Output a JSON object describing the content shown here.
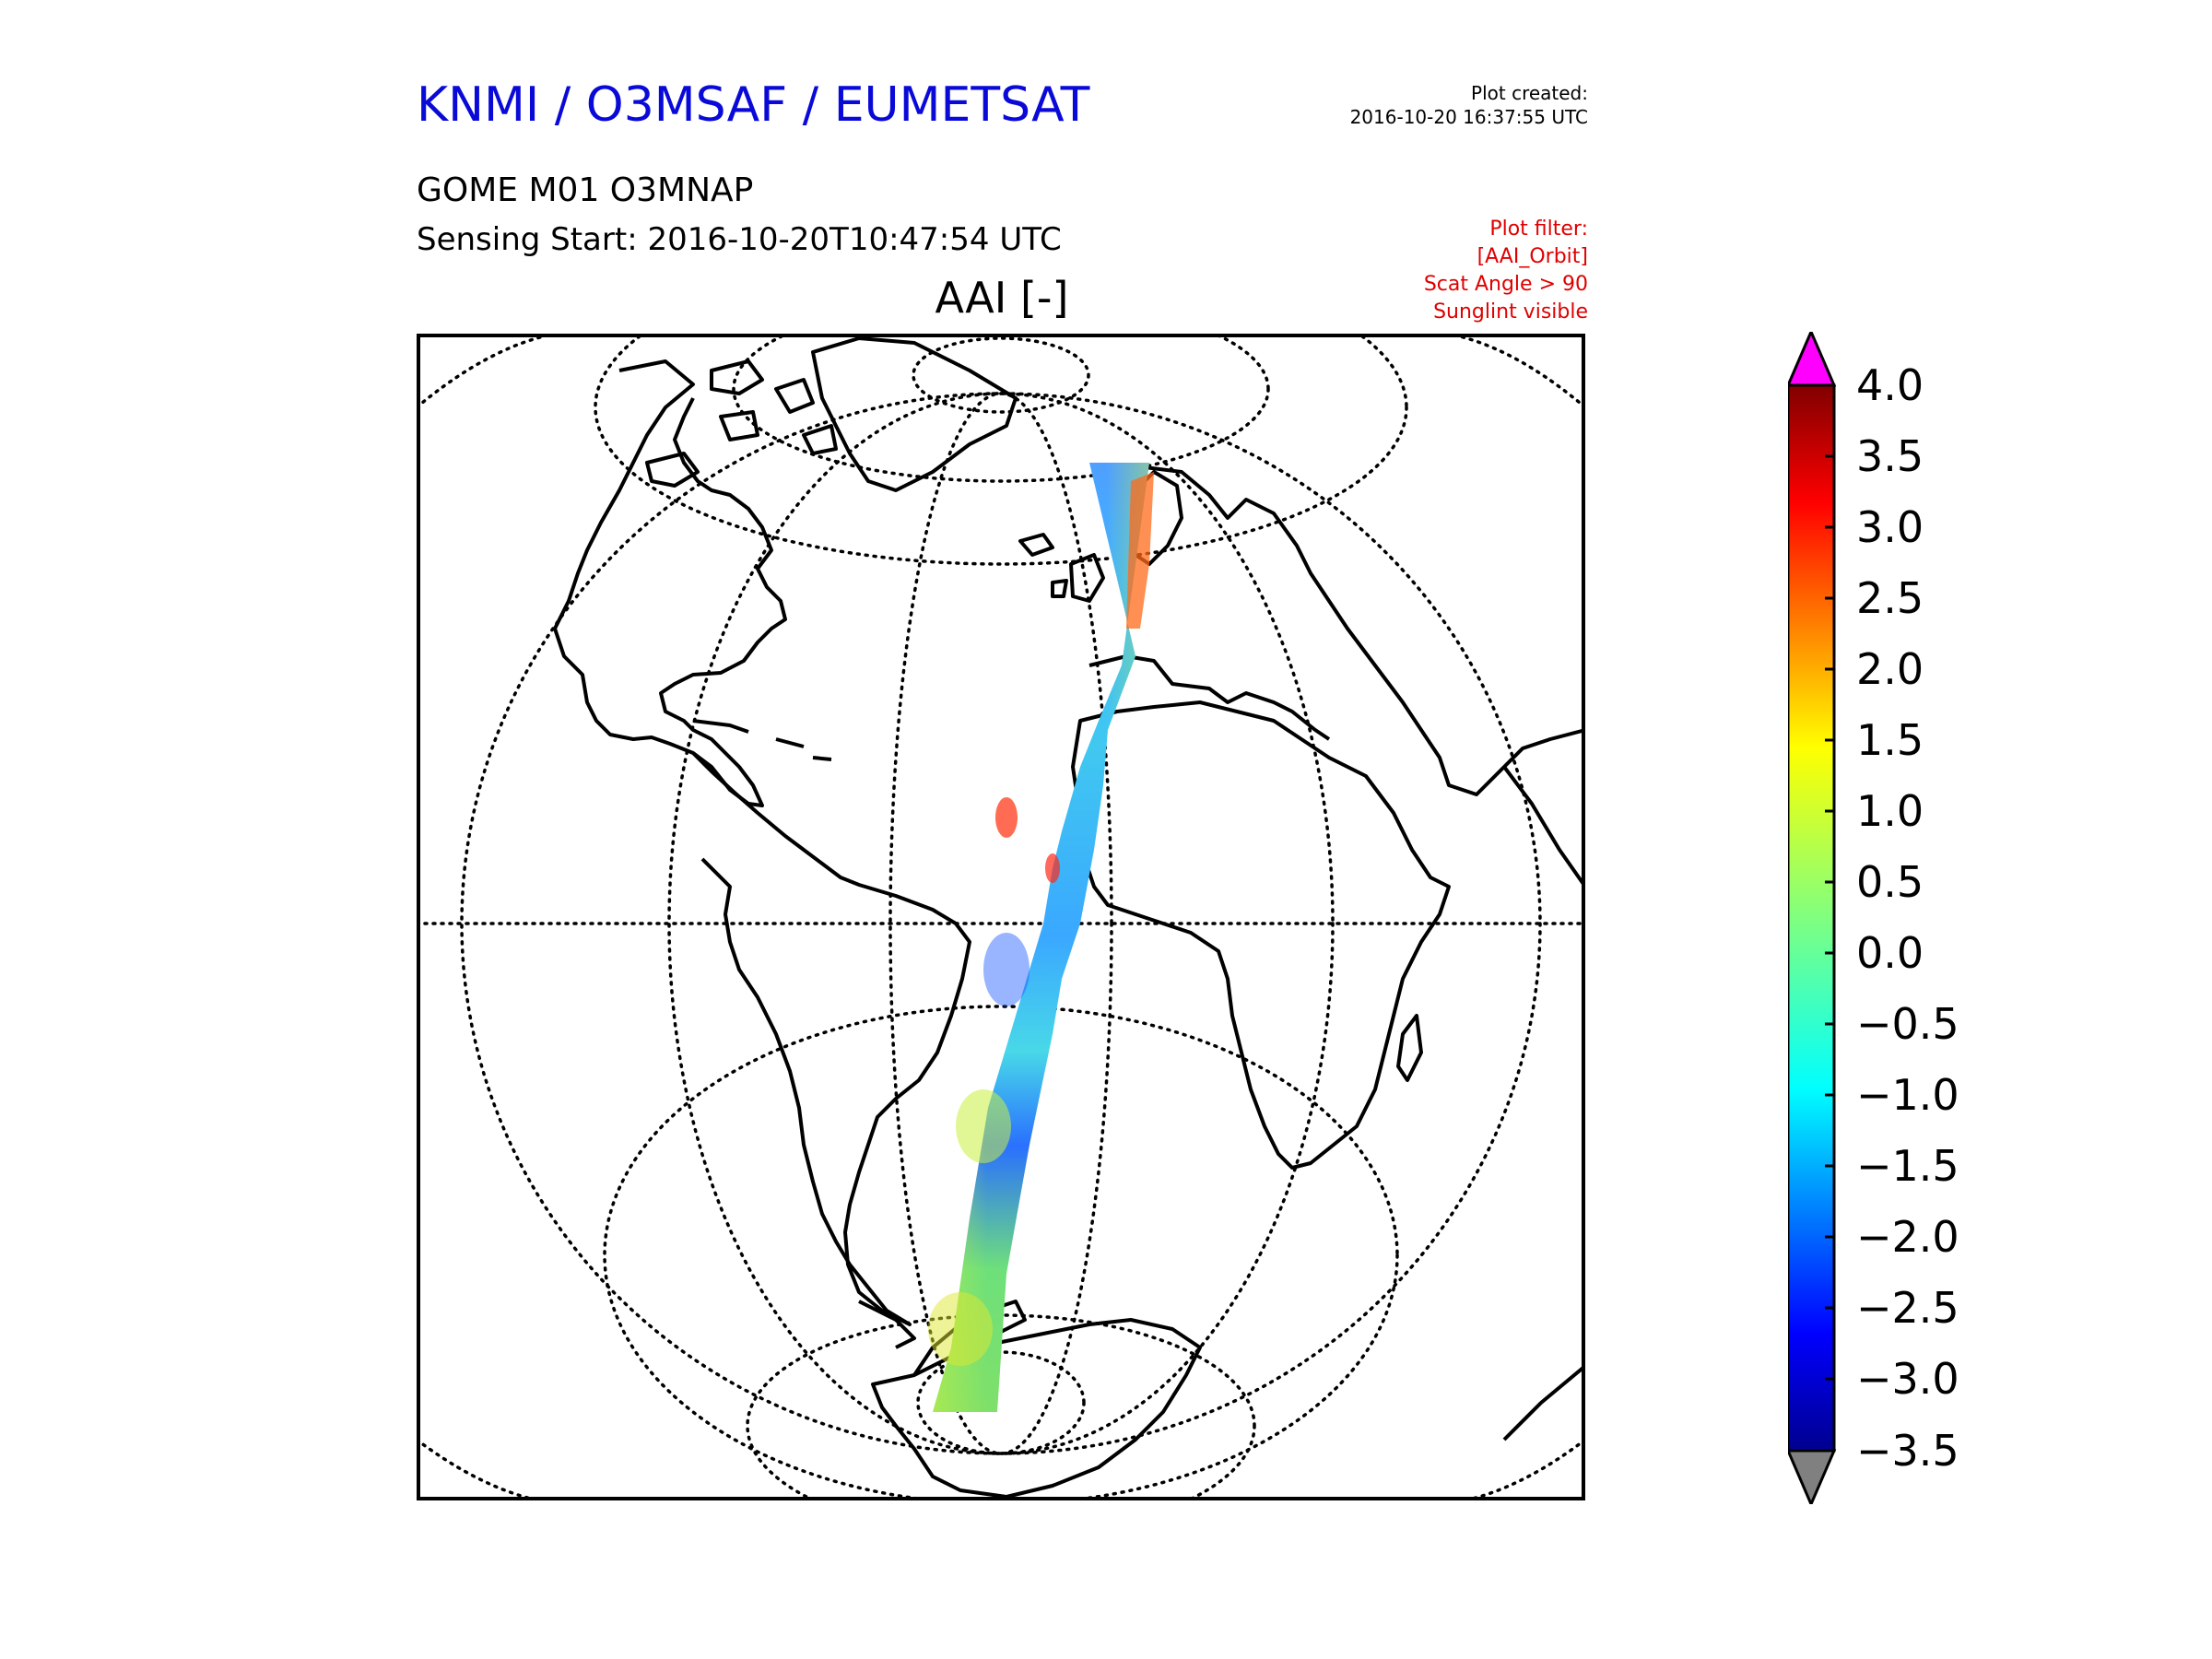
{
  "header": {
    "title": "KNMI / O3MSAF / EUMETSAT",
    "created_label": "Plot created:",
    "created_time": "2016-10-20 16:37:55 UTC",
    "product": "GOME M01 O3MNAP",
    "sensing_start": "Sensing Start: 2016-10-20T10:47:54 UTC",
    "filter_lines": [
      "Plot filter:",
      "[AAI_Orbit]",
      "Scat Angle > 90",
      "Sunglint visible"
    ]
  },
  "map": {
    "title": "AAI [-]",
    "projection": "orthographic",
    "center": {
      "lat": 0,
      "lon": -20
    },
    "graticule": "dotted",
    "content": [
      "continents-outline",
      "satellite-swath"
    ],
    "swath_colors": {
      "low": "#0000ff",
      "mid": "#00e0ff",
      "high": "#ff0000"
    }
  },
  "colorbar": {
    "min": -3.5,
    "max": 4.0,
    "ticks": [
      "4.0",
      "3.5",
      "3.0",
      "2.5",
      "2.0",
      "1.5",
      "1.0",
      "0.5",
      "0.0",
      "−0.5",
      "−1.0",
      "−1.5",
      "−2.0",
      "−2.5",
      "−3.0",
      "−3.5"
    ],
    "over_color": "#ff00ff",
    "under_color": "#808080",
    "colormap": "jet"
  }
}
